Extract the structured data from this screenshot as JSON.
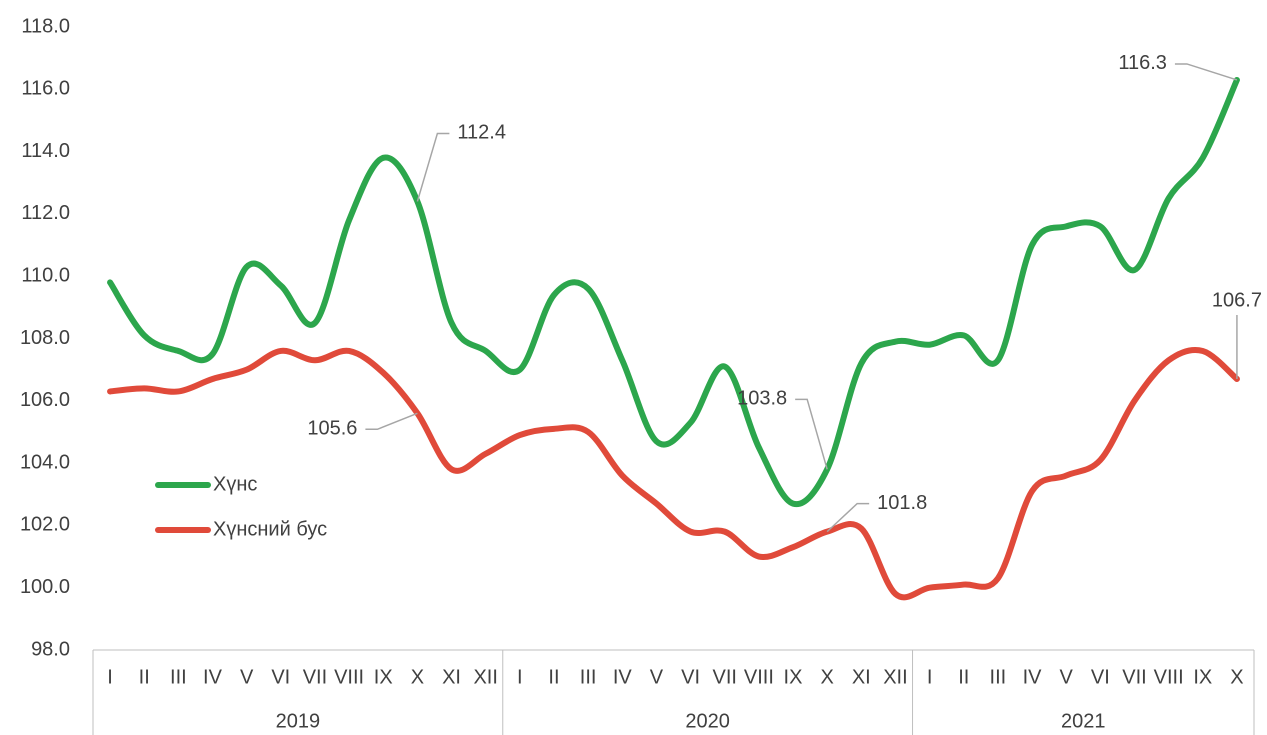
{
  "chart_data": {
    "type": "line",
    "categories": [
      "I",
      "II",
      "III",
      "IV",
      "V",
      "VI",
      "VII",
      "VIII",
      "IX",
      "X",
      "XI",
      "XII",
      "I",
      "II",
      "III",
      "IV",
      "V",
      "VI",
      "VII",
      "VIII",
      "IX",
      "X",
      "XI",
      "XII",
      "I",
      "II",
      "III",
      "IV",
      "V",
      "VI",
      "VII",
      "VIII",
      "IX",
      "X"
    ],
    "groups": [
      {
        "label": "2019",
        "span": 12
      },
      {
        "label": "2020",
        "span": 12
      },
      {
        "label": "2021",
        "span": 10
      }
    ],
    "series": [
      {
        "name": "Хүнс",
        "color": "#2ca64c",
        "values": [
          109.8,
          108.1,
          107.6,
          107.5,
          110.3,
          109.7,
          108.5,
          111.8,
          113.8,
          112.4,
          108.5,
          107.6,
          107.0,
          109.4,
          109.6,
          107.3,
          104.7,
          105.3,
          107.1,
          104.5,
          102.7,
          103.8,
          107.2,
          107.9,
          107.8,
          108.1,
          107.3,
          111.0,
          111.6,
          111.6,
          110.2,
          112.5,
          113.8,
          116.3
        ],
        "value_labels": [
          null,
          null,
          null,
          null,
          null,
          null,
          null,
          null,
          null,
          "112.4",
          null,
          null,
          null,
          null,
          null,
          null,
          null,
          null,
          null,
          null,
          null,
          "103.8",
          null,
          null,
          null,
          null,
          null,
          null,
          null,
          null,
          null,
          null,
          null,
          "116.3"
        ]
      },
      {
        "name": "Хүнсний бус",
        "color": "#e04a3a",
        "values": [
          106.3,
          106.4,
          106.3,
          106.7,
          107.0,
          107.6,
          107.3,
          107.6,
          106.9,
          105.6,
          103.8,
          104.3,
          104.9,
          105.1,
          105.0,
          103.6,
          102.7,
          101.8,
          101.8,
          101.0,
          101.3,
          101.8,
          101.9,
          99.8,
          100.0,
          100.1,
          100.3,
          103.1,
          103.6,
          104.1,
          106.0,
          107.3,
          107.6,
          106.7
        ],
        "value_labels": [
          null,
          null,
          null,
          null,
          null,
          null,
          null,
          null,
          null,
          "105.6",
          null,
          null,
          null,
          null,
          null,
          null,
          null,
          null,
          null,
          null,
          null,
          "101.8",
          null,
          null,
          null,
          null,
          null,
          null,
          null,
          null,
          null,
          null,
          null,
          "106.7"
        ]
      }
    ],
    "ylim": [
      98,
      118
    ],
    "yticks": [
      {
        "value": 98,
        "label": "98.0"
      },
      {
        "value": 100,
        "label": "100.0"
      },
      {
        "value": 102,
        "label": "102.0"
      },
      {
        "value": 104,
        "label": "104.0"
      },
      {
        "value": 106,
        "label": "106.0"
      },
      {
        "value": 108,
        "label": "108.0"
      },
      {
        "value": 110,
        "label": "110.0"
      },
      {
        "value": 112,
        "label": "112.0"
      },
      {
        "value": 114,
        "label": "114.0"
      },
      {
        "value": 116,
        "label": "116.0"
      },
      {
        "value": 118,
        "label": "118.0"
      }
    ],
    "legend": "left"
  }
}
